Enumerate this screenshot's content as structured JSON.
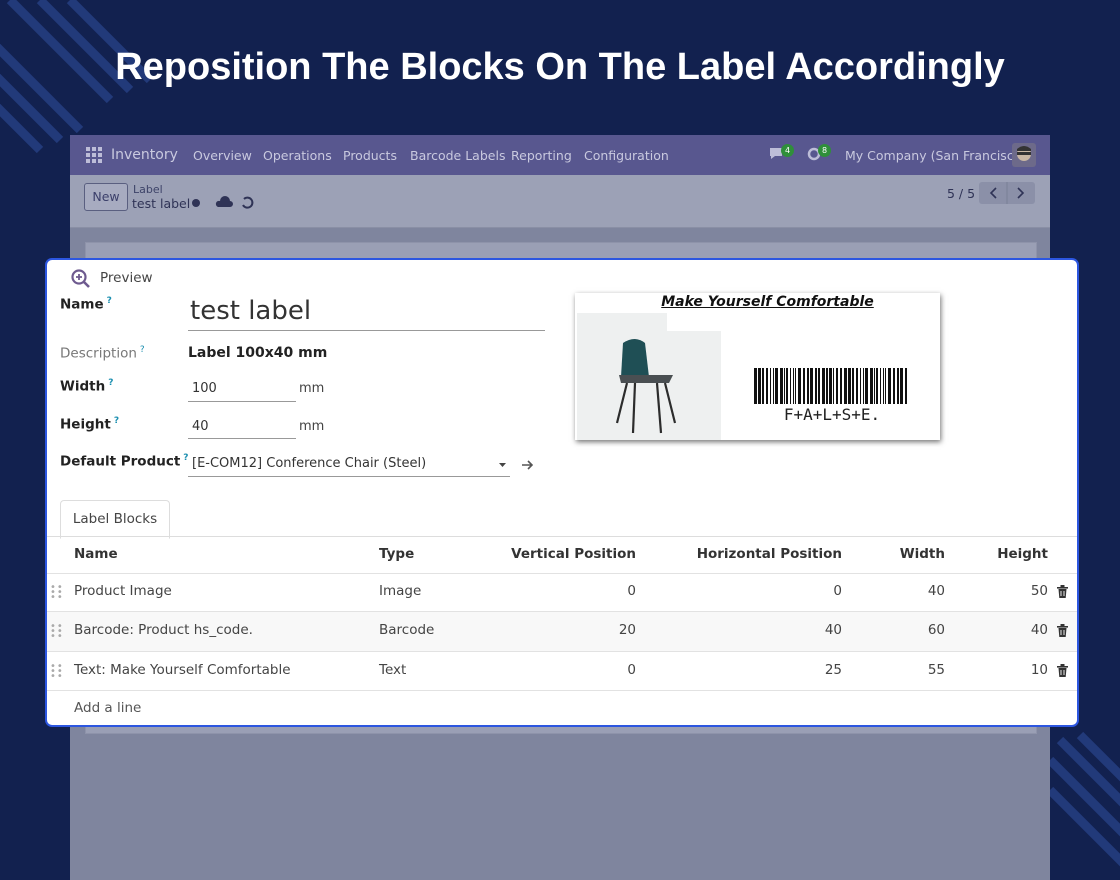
{
  "headline": "Reposition The Blocks On The Label Accordingly",
  "navbar": {
    "app": "Inventory",
    "menu": [
      "Overview",
      "Operations",
      "Products",
      "Barcode Labels",
      "Reporting",
      "Configuration"
    ],
    "messages_badge": 4,
    "activities_badge": 8,
    "company": "My Company (San Francisco)"
  },
  "control_panel": {
    "new_button": "New",
    "breadcrumb": "Label",
    "record": "test label",
    "pager": "5 / 5"
  },
  "form": {
    "preview_button": "Preview",
    "help_mark": "?",
    "unit": "mm",
    "fields": [
      {
        "label": "Name",
        "value": "test label"
      },
      {
        "label": "Description",
        "value": "Label 100x40 mm"
      },
      {
        "label": "Width",
        "value": "100"
      },
      {
        "label": "Height",
        "value": "40"
      },
      {
        "label": "Default Product",
        "value": "[E-COM12] Conference Chair (Steel)"
      }
    ],
    "label_preview": {
      "title": "Make Yourself Comfortable",
      "barcode_text": "F+A+L+S+E."
    }
  },
  "tab": "Label Blocks",
  "table": {
    "columns": [
      "Name",
      "Type",
      "Vertical Position",
      "Horizontal Position",
      "Width",
      "Height"
    ],
    "rows": [
      [
        "Product Image",
        "Image",
        0,
        0,
        40,
        50
      ],
      [
        "Barcode: Product hs_code.",
        "Barcode",
        20,
        40,
        60,
        40
      ],
      [
        "Text: Make Yourself Comfortable",
        "Text",
        0,
        25,
        55,
        10
      ]
    ],
    "add_line": "Add a line"
  }
}
